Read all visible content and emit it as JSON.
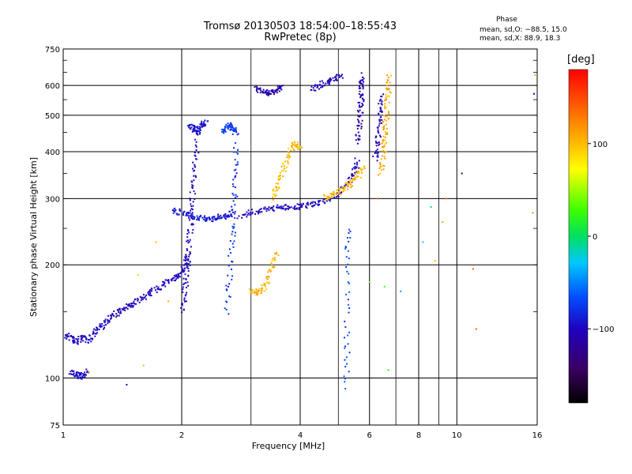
{
  "header": {
    "title_line1": "Tromsø 20130503 18:54:00–18:55:43",
    "title_line2": "RwPretec (8p)"
  },
  "phase_box": {
    "heading": "Phase",
    "line_o": "mean, sd,O: −88.5, 15.0",
    "line_x": "mean, sd,X:  88.9, 18.3"
  },
  "colorbar": {
    "label": "[deg]",
    "ticks": [
      "100",
      "0",
      "−100"
    ],
    "tick_values": [
      100,
      0,
      -100
    ],
    "range": [
      -180,
      180
    ],
    "palette": "rainbow-black-to-red"
  },
  "chart_data": {
    "type": "scatter",
    "title": "Tromsø 20130503 18:54:00–18:55:43",
    "subtitle": "RwPretec (8p)",
    "xlabel": "Frequency [MHz]",
    "ylabel": "Stationary phase Virtual Height [km]",
    "xscale": "log",
    "yscale": "log",
    "xlim": [
      1,
      16
    ],
    "ylim": [
      75,
      750
    ],
    "x_ticks": [
      "1",
      "2",
      "4",
      "6",
      "8",
      "10",
      "16"
    ],
    "x_tick_values": [
      1,
      2,
      4,
      6,
      8,
      10,
      16
    ],
    "y_ticks": [
      "75",
      "100",
      "200",
      "300",
      "400",
      "500",
      "600",
      "750"
    ],
    "y_tick_values": [
      75,
      100,
      200,
      300,
      400,
      500,
      600,
      750
    ],
    "x_grid": [
      1,
      2,
      3,
      4,
      5,
      6,
      7,
      8,
      9,
      10,
      16
    ],
    "y_grid": [
      75,
      100,
      150,
      200,
      250,
      300,
      350,
      400,
      450,
      500,
      550,
      600,
      650,
      700,
      750
    ],
    "grid": true,
    "color_by": "phase [deg]",
    "series": [
      {
        "traces": [
          {
            "x": [
              1.02,
              1.05,
              1.08,
              1.12,
              1.16,
              1.2,
              1.25,
              1.3,
              1.36,
              1.42,
              1.48,
              1.55,
              1.62,
              1.7,
              1.78,
              1.86,
              1.94,
              2.0,
              2.05,
              2.08
            ],
            "y": [
              130,
              128,
              124,
              128,
              126,
              132,
              137,
              143,
              148,
              152,
              156,
              160,
              166,
              171,
              176,
              181,
              186,
              190,
              200,
              215
            ],
            "phase": -100
          },
          {
            "x": [
              1.05,
              1.08,
              1.1,
              1.12,
              1.15
            ],
            "y": [
              104,
              102,
              101,
              102,
              104
            ],
            "phase": -100
          },
          {
            "x": [
              2.02,
              2.04,
              2.06,
              2.08,
              2.1,
              2.12,
              2.14,
              2.16,
              2.18
            ],
            "y": [
              150,
              170,
              190,
              215,
              245,
              280,
              320,
              370,
              430
            ],
            "phase": -100
          },
          {
            "x": [
              2.1,
              2.14,
              2.18,
              2.22,
              2.26,
              2.3
            ],
            "y": [
              470,
              460,
              450,
              460,
              470,
              480
            ],
            "phase": -95
          },
          {
            "x": [
              2.6,
              2.65,
              2.7,
              2.72,
              2.74,
              2.76
            ],
            "y": [
              150,
              190,
              240,
              290,
              350,
              420
            ],
            "phase": -80
          },
          {
            "x": [
              2.55,
              2.6,
              2.65,
              2.7,
              2.75
            ],
            "y": [
              450,
              460,
              470,
              460,
              450
            ],
            "phase": -75
          },
          {
            "x": [
              1.9,
              2.0,
              2.1,
              2.2,
              2.3,
              2.4,
              2.5,
              2.6,
              2.7
            ],
            "y": [
              280,
              275,
              270,
              268,
              265,
              265,
              268,
              270,
              275
            ],
            "phase": -90
          },
          {
            "x": [
              2.8,
              3.0,
              3.2,
              3.4,
              3.6,
              3.8,
              4.0,
              4.2,
              4.4,
              4.7,
              5.0,
              5.3,
              5.5,
              5.6
            ],
            "y": [
              270,
              275,
              280,
              282,
              284,
              285,
              286,
              288,
              292,
              298,
              310,
              330,
              355,
              380
            ],
            "phase": -100
          },
          {
            "x": [
              5.6,
              5.65,
              5.7,
              5.72,
              5.74,
              5.76
            ],
            "y": [
              420,
              470,
              520,
              560,
              600,
              640
            ],
            "phase": -110
          },
          {
            "x": [
              3.4,
              3.5,
              3.6,
              3.7,
              3.8,
              3.9,
              4.0
            ],
            "y": [
              300,
              320,
              350,
              380,
              410,
              420,
              410
            ],
            "phase": 100
          },
          {
            "x": [
              4.6,
              4.8,
              5.0,
              5.2,
              5.4,
              5.6,
              5.8
            ],
            "y": [
              300,
              305,
              312,
              320,
              330,
              345,
              365
            ],
            "phase": 100
          },
          {
            "x": [
              6.4,
              6.5,
              6.55,
              6.6,
              6.65,
              6.7,
              6.75
            ],
            "y": [
              350,
              390,
              430,
              470,
              520,
              580,
              640
            ],
            "phase": 110
          },
          {
            "x": [
              6.2,
              6.3,
              6.35,
              6.4,
              6.45
            ],
            "y": [
              380,
              420,
              470,
              520,
              570
            ],
            "phase": -105
          },
          {
            "x": [
              3.0,
              3.1,
              3.2,
              3.3,
              3.4,
              3.5
            ],
            "y": [
              170,
              168,
              172,
              180,
              200,
              215
            ],
            "phase": 105
          },
          {
            "x": [
              3.1,
              3.2,
              3.3,
              3.4,
              3.5,
              3.6
            ],
            "y": [
              590,
              580,
              570,
              575,
              585,
              600
            ],
            "phase": -110
          },
          {
            "x": [
              4.3,
              4.5,
              4.7,
              4.9,
              5.1
            ],
            "y": [
              585,
              600,
              615,
              625,
              640
            ],
            "phase": -100
          },
          {
            "x": [
              5.25,
              5.26,
              5.28,
              5.3
            ],
            "y": [
              95,
              130,
              200,
              255
            ],
            "phase": -70
          }
        ]
      }
    ],
    "scatter_points": [
      {
        "x": 1.16,
        "y": 104,
        "phase": 110
      },
      {
        "x": 1.45,
        "y": 96,
        "phase": -110
      },
      {
        "x": 1.6,
        "y": 108,
        "phase": 100
      },
      {
        "x": 1.55,
        "y": 188,
        "phase": 90
      },
      {
        "x": 1.72,
        "y": 230,
        "phase": 100
      },
      {
        "x": 1.85,
        "y": 160,
        "phase": 110
      },
      {
        "x": 7.2,
        "y": 170,
        "phase": -40
      },
      {
        "x": 8.2,
        "y": 230,
        "phase": -30
      },
      {
        "x": 8.6,
        "y": 285,
        "phase": -10
      },
      {
        "x": 8.8,
        "y": 205,
        "phase": 100
      },
      {
        "x": 9.2,
        "y": 260,
        "phase": 110
      },
      {
        "x": 9.4,
        "y": 300,
        "phase": 130
      },
      {
        "x": 10.3,
        "y": 350,
        "phase": -140
      },
      {
        "x": 11.0,
        "y": 195,
        "phase": 140
      },
      {
        "x": 11.2,
        "y": 135,
        "phase": 140
      },
      {
        "x": 15.7,
        "y": 570,
        "phase": -110
      },
      {
        "x": 15.8,
        "y": 640,
        "phase": 110
      },
      {
        "x": 15.6,
        "y": 275,
        "phase": 120
      },
      {
        "x": 6.0,
        "y": 180,
        "phase": 40
      },
      {
        "x": 6.3,
        "y": 300,
        "phase": 130
      },
      {
        "x": 6.7,
        "y": 105,
        "phase": 20
      },
      {
        "x": 6.55,
        "y": 175,
        "phase": 30
      }
    ]
  }
}
